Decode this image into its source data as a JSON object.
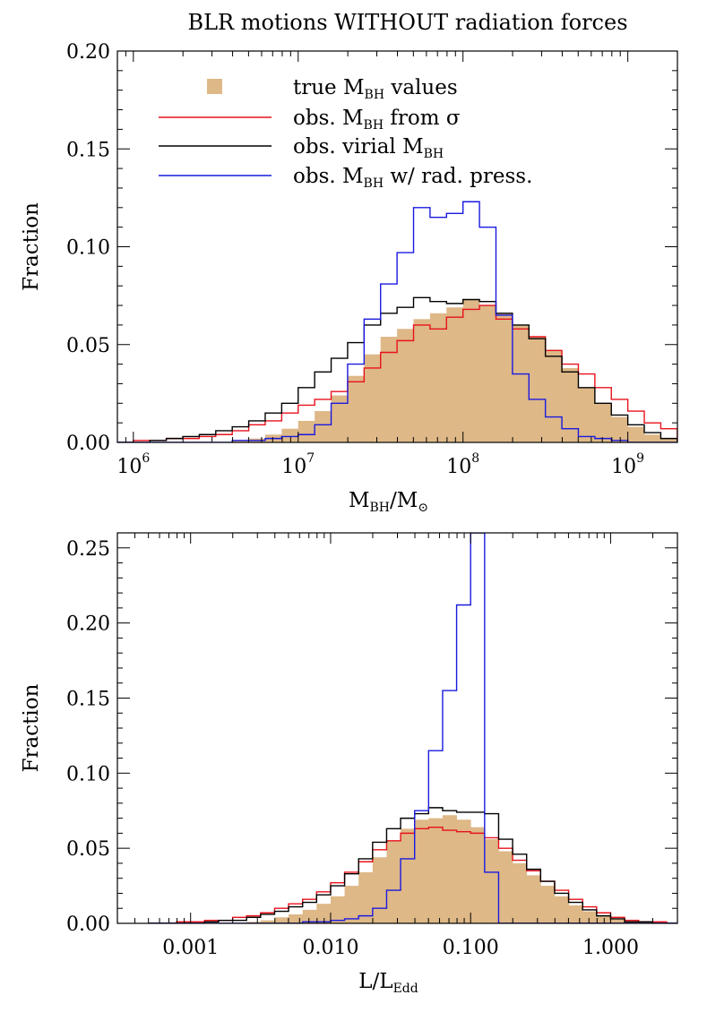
{
  "title": "BLR motions WITHOUT radiation forces",
  "colors": {
    "true_fill": "#deb887",
    "sigma": "#e8111b",
    "virial": "#000000",
    "radpress": "#1a1adf",
    "axis": "#000000"
  },
  "legend": {
    "placement": "top-left",
    "entries": [
      {
        "pre": "true M",
        "sub": "BH",
        "post": " values"
      },
      {
        "pre": "obs. M",
        "sub": "BH",
        "post": " from σ"
      },
      {
        "pre": "obs. virial M",
        "sub": "BH",
        "post": ""
      },
      {
        "pre": "obs. M",
        "sub": "BH",
        "post": " w/ rad. press."
      }
    ]
  },
  "chart_data": [
    {
      "type": "histogram",
      "xscale": "log",
      "xlim": [
        800000,
        2000000000
      ],
      "ylim": [
        0,
        0.2
      ],
      "ylabel": "Fraction",
      "xlabel": {
        "main": "M",
        "sub": "BH",
        "mid": "/M",
        "sub2": "⊙"
      },
      "xticks": [
        {
          "value": 1000000,
          "base": "10",
          "exp": "6"
        },
        {
          "value": 10000000,
          "base": "10",
          "exp": "7"
        },
        {
          "value": 100000000,
          "base": "10",
          "exp": "8"
        },
        {
          "value": 1000000000,
          "base": "10",
          "exp": "9"
        }
      ],
      "yticks": [
        "0.00",
        "0.05",
        "0.10",
        "0.15",
        "0.20"
      ],
      "log_bin_edges": {
        "start": 5.8,
        "width": 0.1,
        "count": 35
      },
      "series": [
        {
          "key": "true",
          "style": "filled",
          "values": [
            0,
            0,
            0,
            0,
            0,
            0,
            0,
            0,
            0.001,
            0.002,
            0.004,
            0.007,
            0.011,
            0.016,
            0.024,
            0.034,
            0.045,
            0.054,
            0.058,
            0.063,
            0.066,
            0.069,
            0.073,
            0.07,
            0.066,
            0.06,
            0.054,
            0.047,
            0.038,
            0.028,
            0.02,
            0.013,
            0.008,
            0.004,
            0.002
          ]
        },
        {
          "key": "sigma",
          "style": "step",
          "values": [
            0,
            0,
            0.001,
            0.001,
            0.002,
            0.002,
            0.003,
            0.004,
            0.006,
            0.009,
            0.011,
            0.015,
            0.019,
            0.022,
            0.026,
            0.031,
            0.038,
            0.046,
            0.052,
            0.06,
            0.058,
            0.064,
            0.068,
            0.07,
            0.063,
            0.058,
            0.054,
            0.047,
            0.04,
            0.035,
            0.028,
            0.022,
            0.016,
            0.01,
            0.007
          ]
        },
        {
          "key": "virial",
          "style": "step",
          "values": [
            0,
            0,
            0,
            0.001,
            0.002,
            0.003,
            0.004,
            0.006,
            0.008,
            0.011,
            0.015,
            0.02,
            0.028,
            0.036,
            0.043,
            0.051,
            0.06,
            0.066,
            0.069,
            0.074,
            0.072,
            0.071,
            0.073,
            0.072,
            0.066,
            0.06,
            0.053,
            0.044,
            0.036,
            0.028,
            0.02,
            0.014,
            0.009,
            0.005,
            0.002
          ]
        },
        {
          "key": "radpress",
          "style": "step",
          "values": [
            0,
            0,
            0,
            0,
            0,
            0,
            0,
            0,
            0.001,
            0.001,
            0.002,
            0.003,
            0.004,
            0.009,
            0.02,
            0.04,
            0.063,
            0.081,
            0.097,
            0.12,
            0.115,
            0.117,
            0.123,
            0.11,
            0.065,
            0.035,
            0.022,
            0.013,
            0.007,
            0.003,
            0.002,
            0.001,
            0,
            0,
            0
          ]
        }
      ]
    },
    {
      "type": "histogram",
      "xscale": "log",
      "xlim": [
        0.0003,
        3
      ],
      "ylim": [
        0,
        0.26
      ],
      "ylabel": "Fraction",
      "xlabel": {
        "main": "L/L",
        "sub": "Edd"
      },
      "xticks": [
        {
          "value": 0.001,
          "text": "0.001"
        },
        {
          "value": 0.01,
          "text": "0.010"
        },
        {
          "value": 0.1,
          "text": "0.100"
        },
        {
          "value": 1,
          "text": "1.000"
        }
      ],
      "yticks": [
        "0.00",
        "0.05",
        "0.10",
        "0.15",
        "0.20",
        "0.25"
      ],
      "log_bin_edges": {
        "start": -3.3,
        "width": 0.1,
        "count": 38
      },
      "series": [
        {
          "key": "true",
          "style": "filled",
          "values": [
            0,
            0,
            0,
            0,
            0,
            0,
            0,
            0.001,
            0.002,
            0.004,
            0.006,
            0.009,
            0.013,
            0.018,
            0.025,
            0.034,
            0.044,
            0.055,
            0.063,
            0.069,
            0.07,
            0.072,
            0.069,
            0.064,
            0.056,
            0.048,
            0.04,
            0.032,
            0.025,
            0.018,
            0.012,
            0.008,
            0.005,
            0.003,
            0.001,
            0.001,
            0,
            0
          ]
        },
        {
          "key": "sigma",
          "style": "step",
          "values": [
            0,
            0,
            0.001,
            0.001,
            0.002,
            0.002,
            0.004,
            0.005,
            0.007,
            0.01,
            0.013,
            0.016,
            0.021,
            0.027,
            0.034,
            0.041,
            0.049,
            0.055,
            0.06,
            0.063,
            0.064,
            0.062,
            0.061,
            0.06,
            0.057,
            0.05,
            0.042,
            0.035,
            0.028,
            0.022,
            0.016,
            0.011,
            0.007,
            0.004,
            0.002,
            0.001,
            0.001,
            0
          ]
        },
        {
          "key": "virial",
          "style": "step",
          "values": [
            0,
            0,
            0,
            0,
            0.001,
            0.002,
            0.002,
            0.004,
            0.006,
            0.008,
            0.011,
            0.014,
            0.019,
            0.025,
            0.033,
            0.043,
            0.054,
            0.063,
            0.07,
            0.073,
            0.077,
            0.075,
            0.074,
            0.074,
            0.073,
            0.056,
            0.046,
            0.036,
            0.028,
            0.02,
            0.014,
            0.009,
            0.005,
            0.003,
            0.001,
            0.001,
            0,
            0
          ]
        },
        {
          "key": "radpress",
          "style": "step",
          "values": [
            0,
            0,
            0,
            0,
            0,
            0,
            0,
            0,
            0,
            0,
            0,
            0.001,
            0.001,
            0.002,
            0.003,
            0.005,
            0.01,
            0.022,
            0.043,
            0.075,
            0.115,
            0.155,
            0.212,
            0.262,
            0.034,
            0,
            0,
            0,
            0,
            0,
            0,
            0,
            0,
            0,
            0,
            0,
            0,
            0
          ]
        }
      ]
    }
  ]
}
